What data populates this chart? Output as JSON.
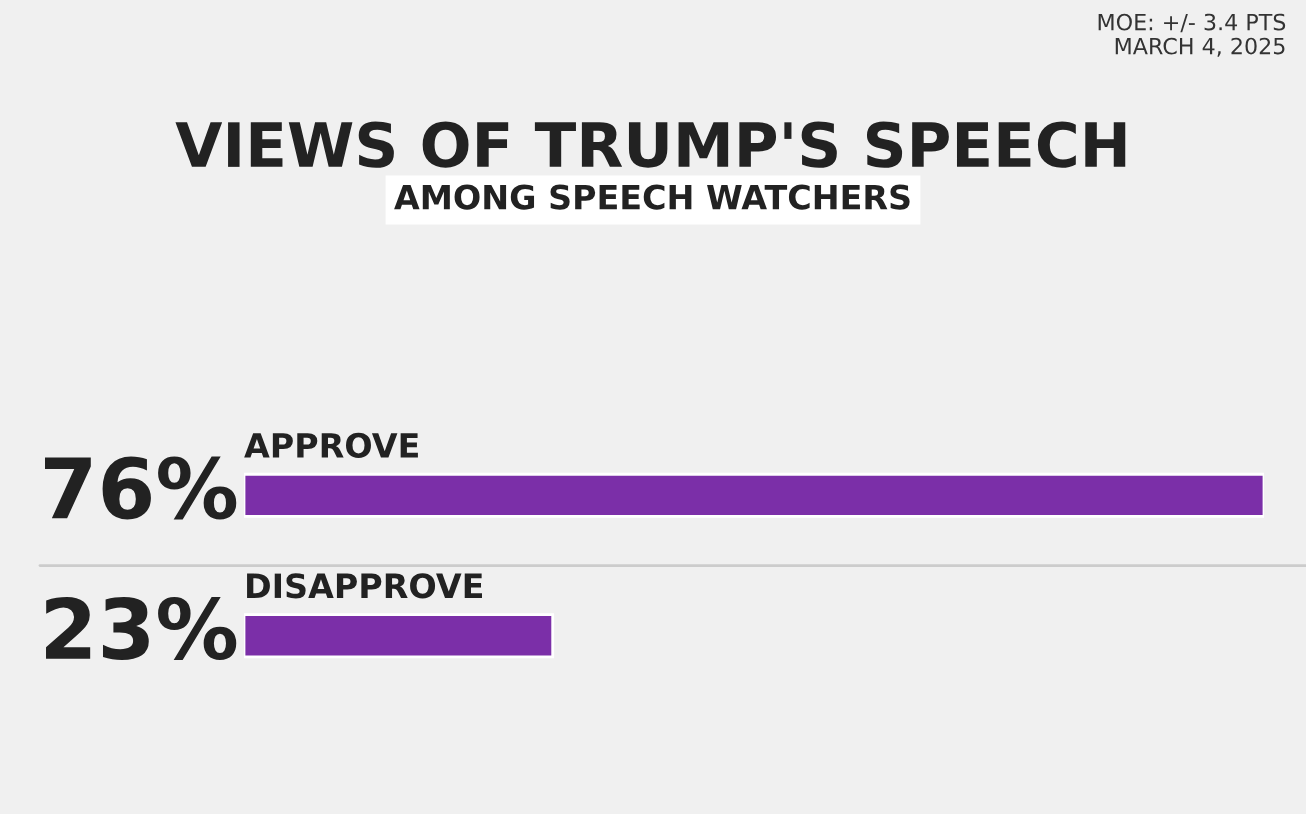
{
  "chart_data": {
    "type": "bar",
    "orientation": "horizontal",
    "title": "VIEWS OF TRUMP'S SPEECH",
    "subtitle": "AMONG SPEECH WATCHERS",
    "categories": [
      "APPROVE",
      "DISAPPROVE"
    ],
    "values": [
      76,
      23
    ],
    "value_labels": [
      "76%",
      "23%"
    ],
    "color": "#7b2fa8",
    "annotations": [
      "MOE: +/- 3.4 PTS",
      "MARCH 4, 2025"
    ]
  }
}
